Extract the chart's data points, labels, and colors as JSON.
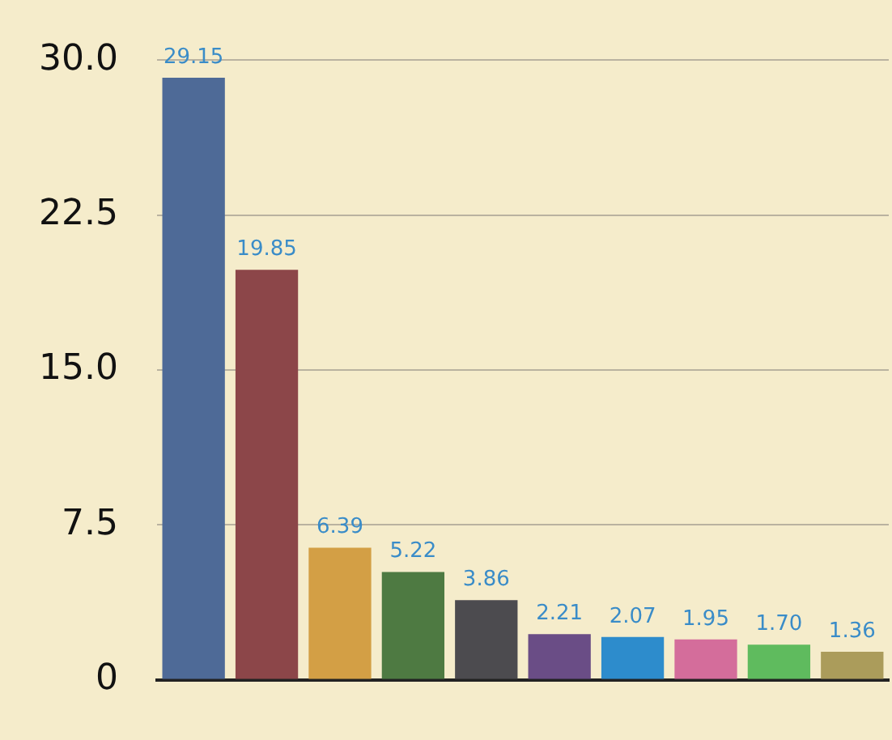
{
  "chart_data": {
    "type": "bar",
    "categories": [
      null,
      null,
      null,
      null,
      null,
      null,
      null,
      null,
      null,
      null
    ],
    "values": [
      29.15,
      19.85,
      6.39,
      5.22,
      3.86,
      2.21,
      2.07,
      1.95,
      1.7,
      1.36
    ],
    "colors": [
      "#4e6a97",
      "#8c4649",
      "#d39f45",
      "#4e7a42",
      "#4c4b4f",
      "#6a4d86",
      "#2d8ccc",
      "#d46d9b",
      "#5fbb5e",
      "#ab9c5b"
    ],
    "value_labels": [
      "29.15",
      "19.85",
      "6.39",
      "5.22",
      "3.86",
      "2.21",
      "2.07",
      "1.95",
      "1.70",
      "1.36"
    ],
    "ylim": [
      0,
      30
    ],
    "yticks": [
      0,
      {
        "value": 7.5,
        "label": "7.5"
      },
      {
        "value": 15,
        "label": "15.0"
      },
      {
        "value": 22.5,
        "label": "22.5"
      },
      {
        "value": 30,
        "label": "30.0"
      }
    ],
    "grid": "y"
  }
}
